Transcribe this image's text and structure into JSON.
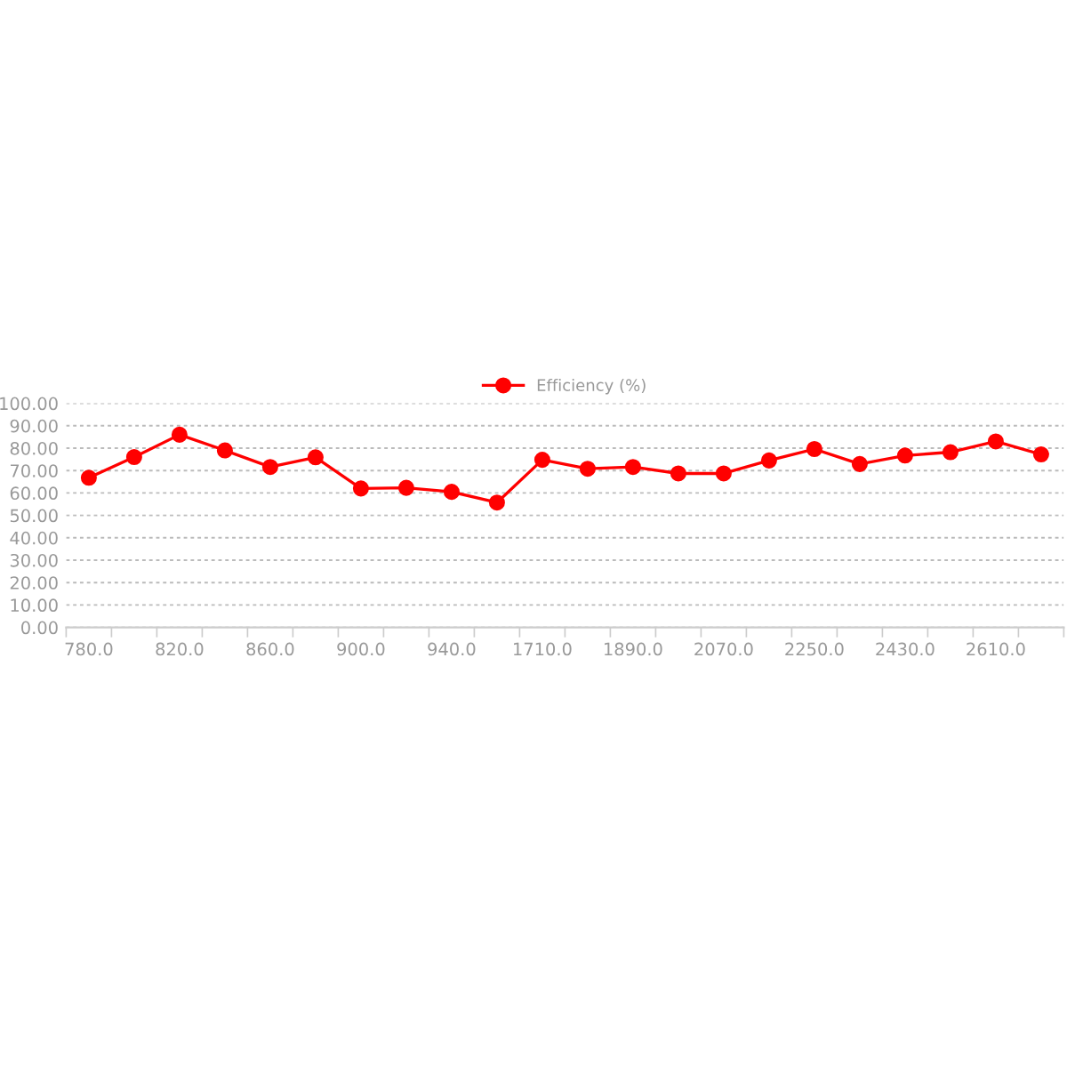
{
  "chart_data": {
    "type": "line",
    "categories": [
      "780.0",
      null,
      "820.0",
      null,
      "860.0",
      null,
      "900.0",
      null,
      "940.0",
      null,
      "1710.0",
      null,
      "1890.0",
      null,
      "2070.0",
      null,
      "2250.0",
      null,
      "2430.0",
      null,
      "2610.0",
      null
    ],
    "series": [
      {
        "name": "Efficiency (%)",
        "color": "#ff0000",
        "values": [
          66.8,
          76,
          86,
          79,
          71.6,
          75.9,
          62,
          62.3,
          60.5,
          55.7,
          74.8,
          70.8,
          71.6,
          68.7,
          68.7,
          74.5,
          79.6,
          72.9,
          76.7,
          78.2,
          83,
          77.2
        ]
      }
    ],
    "ylim": [
      0,
      100
    ],
    "yticks": [
      {
        "value": 0,
        "label": "0.00"
      },
      {
        "value": 10,
        "label": "10.00"
      },
      {
        "value": 20,
        "label": "20.00"
      },
      {
        "value": 30,
        "label": "30.00"
      },
      {
        "value": 40,
        "label": "40.00"
      },
      {
        "value": 50,
        "label": "50.00"
      },
      {
        "value": 60,
        "label": "60.00"
      },
      {
        "value": 70,
        "label": "70.00"
      },
      {
        "value": 80,
        "label": "80.00"
      },
      {
        "value": 90,
        "label": "90.00"
      },
      {
        "value": 100,
        "label": "100.00"
      }
    ],
    "grid": "y",
    "legend": "top",
    "marker": "circle",
    "line_style": "solid"
  }
}
